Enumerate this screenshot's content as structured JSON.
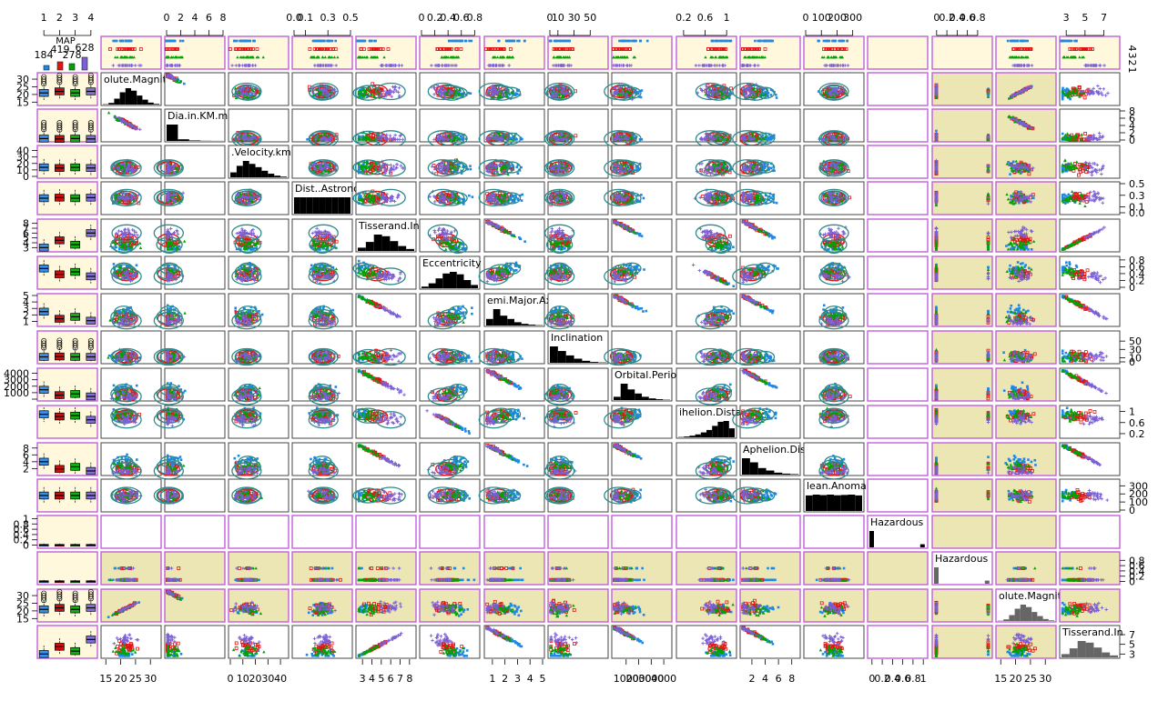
{
  "chart_data": {
    "type": "scatter",
    "title": "",
    "plot_kind": "scatterplot-matrix",
    "grid": false,
    "legend": {
      "title": "MAP",
      "placement": "top-left",
      "groups": [
        "1",
        "2",
        "3",
        "4"
      ],
      "counts": [
        184,
        419,
        278,
        628
      ],
      "count_labels": [
        "184",
        "419",
        "278",
        "628"
      ],
      "colors": [
        "#1e88e5",
        "#e01515",
        "#00a300",
        "#7a5fd6"
      ],
      "markers": [
        "square",
        "square-open",
        "triangle",
        "plus"
      ]
    },
    "colors": {
      "diag_bg": "#ffffff",
      "cream": "#fff8dc",
      "khaki": "#ece5b4",
      "border": "#c060d8",
      "ellipse": "#2e8b8b",
      "box_blue": "#3a8fe8",
      "box_red": "#d10b0b",
      "box_green": "#11b011",
      "box_purple": "#8070d8"
    },
    "variables": [
      {
        "label": "olute.Magnit",
        "min": 14,
        "max": 33,
        "ticks": [
          15,
          20,
          25,
          30
        ],
        "tick_labels": [
          "15",
          "20",
          "25",
          "30"
        ],
        "dist": [
          0.02,
          0.1,
          0.36,
          0.75,
          1.0,
          0.85,
          0.55,
          0.3,
          0.12,
          0.04
        ]
      },
      {
        "label": "Dia.in.KM.m",
        "min": 0,
        "max": 8,
        "ticks": [
          0,
          2,
          4,
          6,
          8
        ],
        "tick_labels": [
          "0",
          "2",
          "4",
          "6",
          "8"
        ],
        "dist": [
          1.0,
          0.1,
          0.03,
          0.01,
          0.005
        ]
      },
      {
        "label": ".Velocity.km",
        "min": 0,
        "max": 45,
        "ticks": [
          0,
          10,
          20,
          30,
          40
        ],
        "tick_labels": [
          "0",
          "10",
          "20",
          "30",
          "40"
        ],
        "dist": [
          0.3,
          0.7,
          1.0,
          0.82,
          0.62,
          0.4,
          0.22,
          0.1,
          0.04
        ]
      },
      {
        "label": "Dist..Astrono",
        "min": 0,
        "max": 0.5,
        "ticks": [
          0,
          0.1,
          0.3,
          0.5
        ],
        "tick_labels": [
          "0.0",
          "0.1",
          "0.3",
          "0.5"
        ],
        "dist": [
          1.0,
          1.0,
          1.0,
          1.0,
          1.0,
          1.0,
          1.0,
          1.0,
          1.0
        ]
      },
      {
        "label": "Tisserand.In",
        "min": 2.5,
        "max": 8.5,
        "ticks": [
          3,
          4,
          5,
          6,
          7,
          8
        ],
        "tick_labels": [
          "3",
          "4",
          "5",
          "6",
          "7",
          "8"
        ],
        "dist": [
          0.2,
          0.55,
          1.0,
          0.9,
          0.6,
          0.3,
          0.12
        ]
      },
      {
        "label": "Eccentricity",
        "min": 0,
        "max": 0.85,
        "ticks": [
          0,
          0.2,
          0.4,
          0.6,
          0.8
        ],
        "tick_labels": [
          "0",
          "0.2",
          "0.4",
          "0.6",
          "0.8"
        ],
        "dist": [
          0.1,
          0.3,
          0.6,
          0.9,
          1.0,
          0.85,
          0.5,
          0.2
        ]
      },
      {
        "label": "emi.Major.Ax",
        "min": 0.5,
        "max": 5,
        "ticks": [
          1,
          2,
          3,
          4,
          5
        ],
        "tick_labels": [
          "1",
          "2",
          "3",
          "4",
          "5"
        ],
        "dist": [
          0.4,
          1.0,
          0.6,
          0.4,
          0.2,
          0.1,
          0.05,
          0.02
        ]
      },
      {
        "label": "Inclination",
        "min": 0,
        "max": 70,
        "ticks": [
          0,
          10,
          30,
          50
        ],
        "tick_labels": [
          "0",
          "10",
          "30",
          "50"
        ],
        "dist": [
          1.0,
          0.72,
          0.45,
          0.25,
          0.12,
          0.05,
          0.02
        ]
      },
      {
        "label": "Orbital.Period",
        "min": 0,
        "max": 4500,
        "ticks": [
          0,
          1000,
          2000,
          3000,
          4000
        ],
        "tick_labels": [
          "",
          "1000",
          "2000",
          "3000",
          "4000"
        ],
        "dist": [
          0.2,
          1.0,
          0.65,
          0.4,
          0.2,
          0.1,
          0.05,
          0.02
        ]
      },
      {
        "label": "ihelion.Dista",
        "min": 0.1,
        "max": 1.15,
        "ticks": [
          0.2,
          0.6,
          1.0
        ],
        "tick_labels": [
          "0.2",
          "0.6",
          "1"
        ],
        "dist": [
          0.02,
          0.05,
          0.1,
          0.18,
          0.3,
          0.45,
          0.7,
          0.95,
          1.0,
          0.55
        ]
      },
      {
        "label": "Aphelion.Dis",
        "min": 0.5,
        "max": 9,
        "ticks": [
          2,
          4,
          6,
          8
        ],
        "tick_labels": [
          "2",
          "4",
          "6",
          "8"
        ],
        "dist": [
          1.0,
          0.75,
          0.4,
          0.25,
          0.12,
          0.06,
          0.03
        ]
      },
      {
        "label": "lean.Anomal",
        "min": 0,
        "max": 360,
        "ticks": [
          0,
          100,
          200,
          300
        ],
        "tick_labels": [
          "0",
          "100",
          "200",
          "300"
        ],
        "dist": [
          0.95,
          1.0,
          0.97,
          1.0,
          0.96,
          0.98,
          1.0,
          0.95
        ]
      },
      {
        "label": "Hazardous",
        "min": -0.05,
        "max": 1.05,
        "ticks": [
          0,
          0.2,
          0.4,
          0.6,
          0.8,
          1
        ],
        "tick_labels": [
          "0",
          "0.2",
          "0.4",
          "0.6",
          "0.8",
          "1"
        ],
        "binary": true,
        "dist": [
          1.0,
          0,
          0,
          0,
          0,
          0,
          0,
          0,
          0,
          0.19
        ]
      },
      {
        "label": "Hazardous",
        "min": -0.05,
        "max": 1.05,
        "ticks": [
          0,
          0.2,
          0.4,
          0.6,
          0.8
        ],
        "tick_labels": [
          "0",
          "0.2",
          "0.4",
          "0.6",
          "0.8"
        ],
        "binary": true,
        "dist": [
          1.0,
          0,
          0,
          0,
          0,
          0,
          0,
          0,
          0,
          0.19
        ]
      },
      {
        "label": "olute.Magnit",
        "min": 14,
        "max": 33,
        "ticks": [
          15,
          20,
          25,
          30
        ],
        "tick_labels": [
          "15",
          "20",
          "25",
          "30"
        ],
        "dist": [
          0.02,
          0.1,
          0.36,
          0.75,
          1.0,
          0.85,
          0.55,
          0.3,
          0.12,
          0.04
        ]
      },
      {
        "label": "Tisserand.In",
        "min": 2.5,
        "max": 8.5,
        "ticks": [
          3,
          5,
          7
        ],
        "tick_labels": [
          "3",
          "5",
          "7"
        ],
        "dist": [
          0.2,
          0.55,
          1.0,
          0.9,
          0.6,
          0.3,
          0.12
        ]
      }
    ],
    "map_axis": {
      "ticks": [
        1,
        2,
        3,
        4
      ],
      "tick_labels": [
        "1",
        "2",
        "3",
        "4"
      ],
      "right_labels": [
        "4",
        "3",
        "2",
        "1"
      ]
    },
    "panel_types": {
      "first_column": "boxplot by MAP",
      "first_row": "strip by MAP",
      "diagonal": "histogram",
      "columns_12_13": "Hazardous vs variable with ellipses",
      "columns_14_15": "scatter",
      "shaded_columns": [
        13
      ],
      "shaded_rows": [
        13
      ]
    },
    "group_means": {
      "olute.Magnit": [
        21,
        22,
        21,
        22
      ],
      "Dia.in.KM.m": [
        0.4,
        0.3,
        0.4,
        0.3
      ],
      ".Velocity.km": [
        14,
        13,
        14,
        13
      ],
      "Dist..Astrono": [
        0.25,
        0.26,
        0.25,
        0.26
      ],
      "Tisserand.In": [
        3.0,
        4.5,
        3.6,
        6.0
      ],
      "Eccentricity": [
        0.55,
        0.38,
        0.45,
        0.32
      ],
      "emi.Major.Ax": [
        2.5,
        1.4,
        1.7,
        1.1
      ],
      "Inclination": [
        12,
        13,
        12,
        12
      ],
      "Orbital.Period": [
        1450,
        620,
        800,
        420
      ],
      "ihelion.Dista": [
        0.9,
        0.82,
        0.85,
        0.7
      ],
      "Aphelion.Dis": [
        4.0,
        1.9,
        2.5,
        1.3
      ],
      "lean.Anomal": [
        180,
        180,
        180,
        180
      ]
    }
  }
}
